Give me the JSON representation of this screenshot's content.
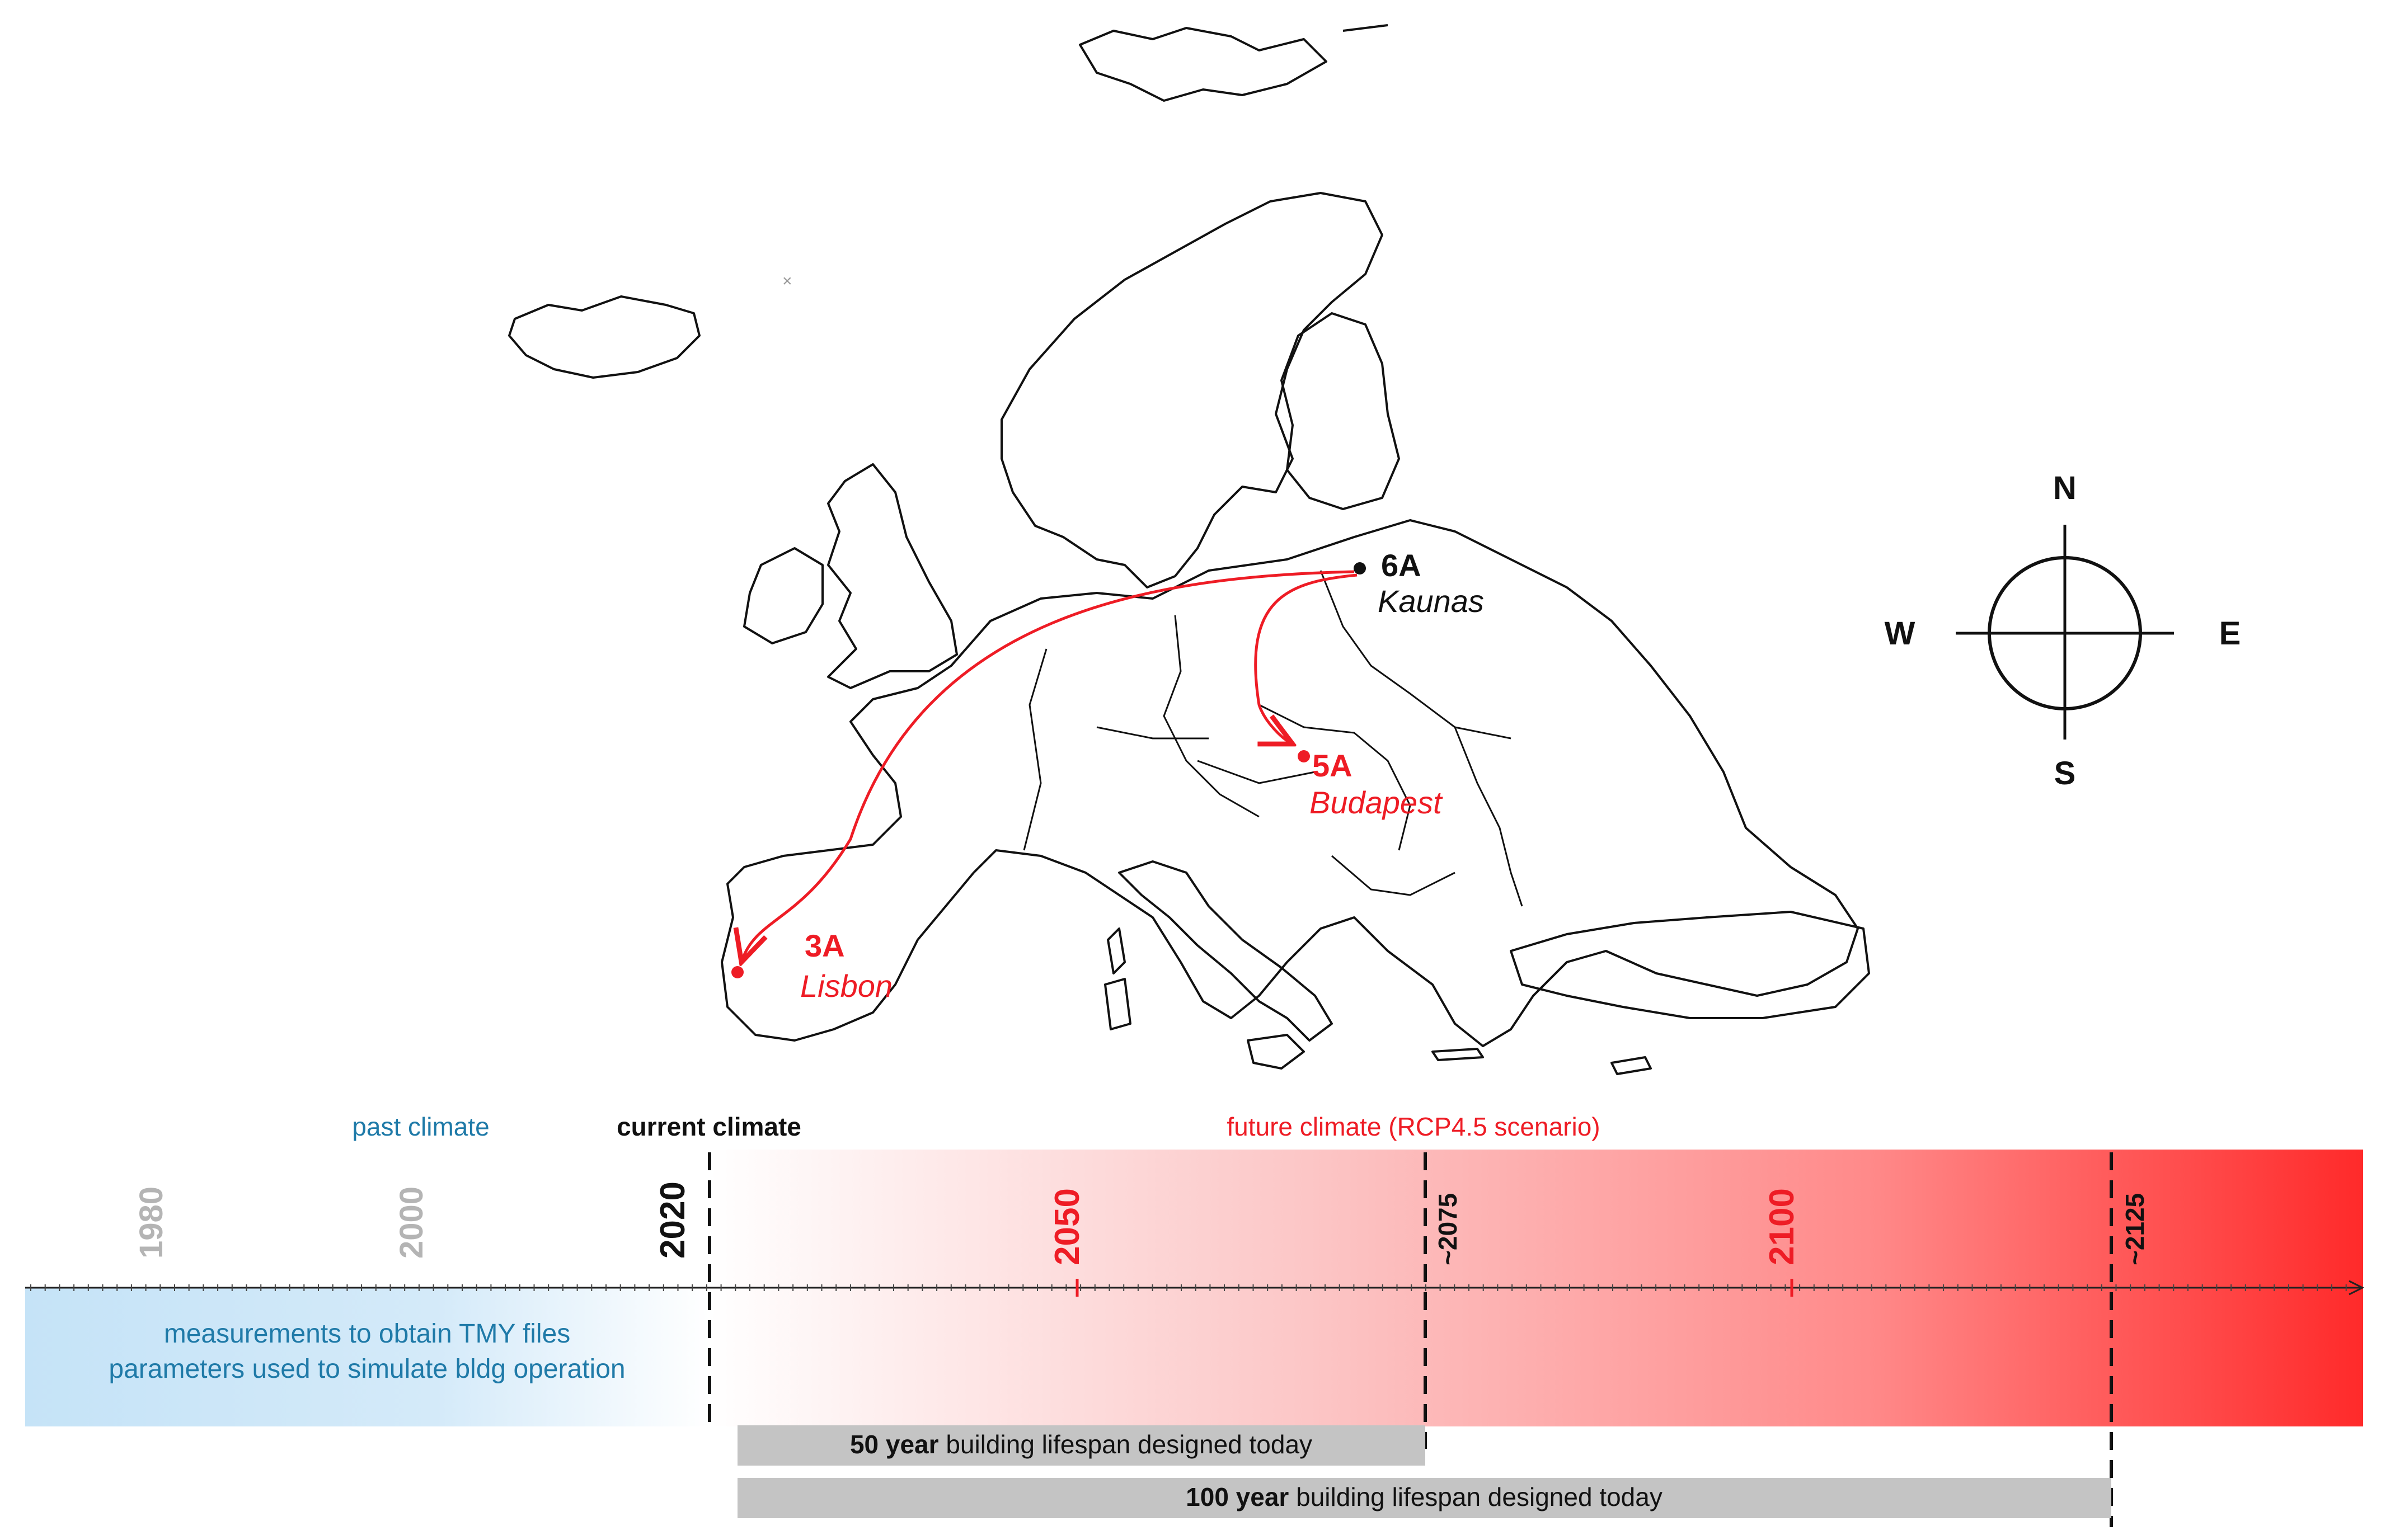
{
  "colors": {
    "accent_red": "#ee1c25",
    "past_blue": "#1f7aa8",
    "past_fill": "#c5e3f7",
    "lifespan_bar": "#c4c4c4",
    "tick_grey": "#b4b4b4",
    "future_red_end": "#ff2a2a"
  },
  "map": {
    "cities": [
      {
        "zone": "6A",
        "name": "Kaunas"
      },
      {
        "zone": "5A",
        "name": "Budapest"
      },
      {
        "zone": "3A",
        "name": "Lisbon"
      }
    ],
    "compass": {
      "n": "N",
      "s": "S",
      "e": "E",
      "w": "W"
    }
  },
  "timeline": {
    "past_label": "past climate",
    "current_label": "current climate",
    "future_label": "future climate (RCP4.5 scenario)",
    "years": [
      {
        "label": "1980",
        "kind": "past"
      },
      {
        "label": "2000",
        "kind": "past"
      },
      {
        "label": "2020",
        "kind": "current"
      },
      {
        "label": "2050",
        "kind": "future"
      },
      {
        "label": "~2075",
        "kind": "marker"
      },
      {
        "label": "2100",
        "kind": "future"
      },
      {
        "label": "~2125",
        "kind": "marker"
      }
    ],
    "past_box": {
      "line1": "measurements to obtain TMY files",
      "line2": "parameters used to simulate bldg operation"
    },
    "lifespans": [
      {
        "bold": "50 year",
        "rest": " building lifespan designed today"
      },
      {
        "bold": "100 year",
        "rest": " building lifespan designed today"
      }
    ]
  }
}
